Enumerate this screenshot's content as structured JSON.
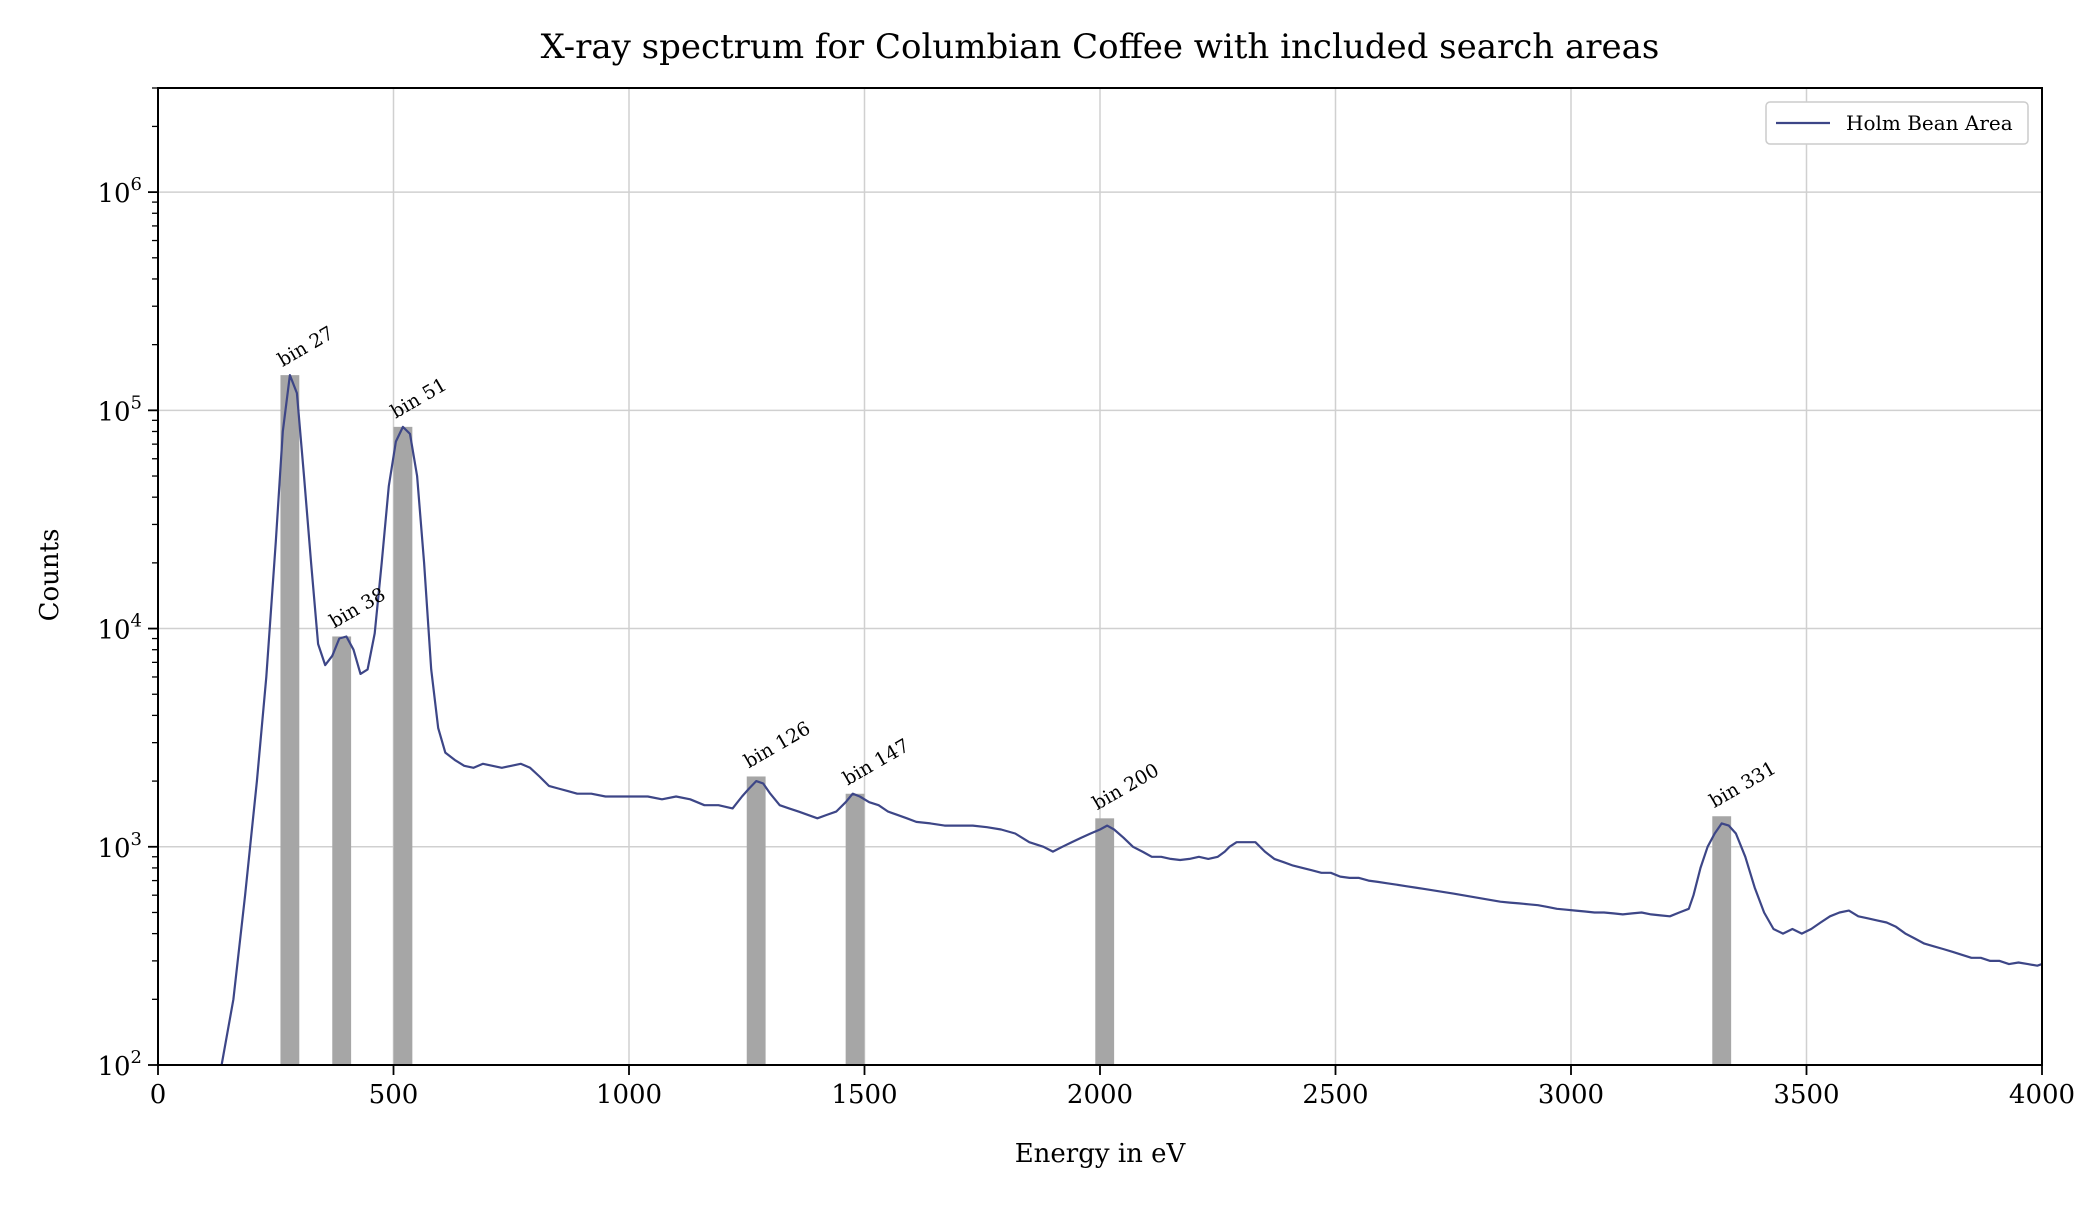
{
  "chart_data": {
    "type": "line",
    "title": "X-ray spectrum for Columbian Coffee with included search areas",
    "xlabel": "Energy in eV",
    "ylabel": "Counts",
    "xlim": [
      0,
      4000
    ],
    "ylim": [
      100,
      3000000
    ],
    "yscale": "log",
    "grid": true,
    "legend_position": "top-right",
    "x_ticks": [
      0,
      500,
      1000,
      1500,
      2000,
      2500,
      3000,
      3500,
      4000
    ],
    "x_tick_labels": [
      "0",
      "500",
      "1000",
      "1500",
      "2000",
      "2500",
      "3000",
      "3500",
      "4000"
    ],
    "y_ticks": [
      {
        "value": 100,
        "base": "10",
        "exp": "2"
      },
      {
        "value": 1000,
        "base": "10",
        "exp": "3"
      },
      {
        "value": 10000,
        "base": "10",
        "exp": "4"
      },
      {
        "value": 100000,
        "base": "10",
        "exp": "5"
      },
      {
        "value": 1000000,
        "base": "10",
        "exp": "6"
      }
    ],
    "series": [
      {
        "name": "Holm Bean Area",
        "color": "#3d4687",
        "points": [
          [
            135,
            100
          ],
          [
            160,
            200
          ],
          [
            185,
            600
          ],
          [
            210,
            2000
          ],
          [
            230,
            6000
          ],
          [
            250,
            25000
          ],
          [
            265,
            80000
          ],
          [
            280,
            145000
          ],
          [
            295,
            120000
          ],
          [
            310,
            50000
          ],
          [
            325,
            20000
          ],
          [
            340,
            8500
          ],
          [
            355,
            6800
          ],
          [
            370,
            7500
          ],
          [
            385,
            9000
          ],
          [
            400,
            9200
          ],
          [
            415,
            8000
          ],
          [
            430,
            6200
          ],
          [
            445,
            6500
          ],
          [
            460,
            9500
          ],
          [
            475,
            20000
          ],
          [
            490,
            45000
          ],
          [
            505,
            72000
          ],
          [
            520,
            84000
          ],
          [
            535,
            78000
          ],
          [
            550,
            50000
          ],
          [
            565,
            20000
          ],
          [
            580,
            6500
          ],
          [
            595,
            3500
          ],
          [
            610,
            2700
          ],
          [
            630,
            2500
          ],
          [
            650,
            2350
          ],
          [
            670,
            2300
          ],
          [
            690,
            2400
          ],
          [
            710,
            2350
          ],
          [
            730,
            2300
          ],
          [
            750,
            2350
          ],
          [
            770,
            2400
          ],
          [
            790,
            2300
          ],
          [
            810,
            2100
          ],
          [
            830,
            1900
          ],
          [
            850,
            1850
          ],
          [
            870,
            1800
          ],
          [
            890,
            1750
          ],
          [
            920,
            1750
          ],
          [
            950,
            1700
          ],
          [
            980,
            1700
          ],
          [
            1010,
            1700
          ],
          [
            1040,
            1700
          ],
          [
            1070,
            1650
          ],
          [
            1100,
            1700
          ],
          [
            1130,
            1650
          ],
          [
            1160,
            1550
          ],
          [
            1190,
            1550
          ],
          [
            1220,
            1500
          ],
          [
            1240,
            1700
          ],
          [
            1255,
            1850
          ],
          [
            1270,
            2000
          ],
          [
            1285,
            1950
          ],
          [
            1300,
            1750
          ],
          [
            1320,
            1550
          ],
          [
            1340,
            1500
          ],
          [
            1360,
            1450
          ],
          [
            1380,
            1400
          ],
          [
            1400,
            1350
          ],
          [
            1420,
            1400
          ],
          [
            1440,
            1450
          ],
          [
            1460,
            1600
          ],
          [
            1475,
            1750
          ],
          [
            1490,
            1700
          ],
          [
            1510,
            1600
          ],
          [
            1530,
            1550
          ],
          [
            1550,
            1450
          ],
          [
            1570,
            1400
          ],
          [
            1590,
            1350
          ],
          [
            1610,
            1300
          ],
          [
            1640,
            1280
          ],
          [
            1670,
            1250
          ],
          [
            1700,
            1250
          ],
          [
            1730,
            1250
          ],
          [
            1760,
            1230
          ],
          [
            1790,
            1200
          ],
          [
            1820,
            1150
          ],
          [
            1850,
            1050
          ],
          [
            1880,
            1000
          ],
          [
            1900,
            950
          ],
          [
            1920,
            1000
          ],
          [
            1940,
            1050
          ],
          [
            1960,
            1100
          ],
          [
            1980,
            1150
          ],
          [
            2000,
            1200
          ],
          [
            2015,
            1250
          ],
          [
            2030,
            1200
          ],
          [
            2050,
            1100
          ],
          [
            2070,
            1000
          ],
          [
            2090,
            950
          ],
          [
            2110,
            900
          ],
          [
            2130,
            900
          ],
          [
            2150,
            880
          ],
          [
            2170,
            870
          ],
          [
            2190,
            880
          ],
          [
            2210,
            900
          ],
          [
            2230,
            880
          ],
          [
            2250,
            900
          ],
          [
            2265,
            950
          ],
          [
            2275,
            1000
          ],
          [
            2290,
            1050
          ],
          [
            2310,
            1050
          ],
          [
            2330,
            1050
          ],
          [
            2350,
            950
          ],
          [
            2370,
            880
          ],
          [
            2390,
            850
          ],
          [
            2410,
            820
          ],
          [
            2430,
            800
          ],
          [
            2450,
            780
          ],
          [
            2470,
            760
          ],
          [
            2490,
            760
          ],
          [
            2510,
            730
          ],
          [
            2530,
            720
          ],
          [
            2550,
            720
          ],
          [
            2570,
            700
          ],
          [
            2590,
            690
          ],
          [
            2610,
            680
          ],
          [
            2630,
            670
          ],
          [
            2650,
            660
          ],
          [
            2670,
            650
          ],
          [
            2690,
            640
          ],
          [
            2710,
            630
          ],
          [
            2730,
            620
          ],
          [
            2750,
            610
          ],
          [
            2770,
            600
          ],
          [
            2790,
            590
          ],
          [
            2810,
            580
          ],
          [
            2830,
            570
          ],
          [
            2850,
            560
          ],
          [
            2870,
            555
          ],
          [
            2890,
            550
          ],
          [
            2910,
            545
          ],
          [
            2930,
            540
          ],
          [
            2950,
            530
          ],
          [
            2970,
            520
          ],
          [
            2990,
            515
          ],
          [
            3010,
            510
          ],
          [
            3030,
            505
          ],
          [
            3050,
            500
          ],
          [
            3070,
            500
          ],
          [
            3090,
            495
          ],
          [
            3110,
            490
          ],
          [
            3130,
            495
          ],
          [
            3150,
            500
          ],
          [
            3170,
            490
          ],
          [
            3190,
            485
          ],
          [
            3210,
            480
          ],
          [
            3230,
            500
          ],
          [
            3250,
            520
          ],
          [
            3260,
            600
          ],
          [
            3275,
            800
          ],
          [
            3290,
            1000
          ],
          [
            3305,
            1150
          ],
          [
            3320,
            1280
          ],
          [
            3335,
            1250
          ],
          [
            3350,
            1150
          ],
          [
            3370,
            900
          ],
          [
            3390,
            650
          ],
          [
            3410,
            500
          ],
          [
            3430,
            420
          ],
          [
            3450,
            400
          ],
          [
            3470,
            420
          ],
          [
            3490,
            400
          ],
          [
            3510,
            420
          ],
          [
            3530,
            450
          ],
          [
            3550,
            480
          ],
          [
            3570,
            500
          ],
          [
            3590,
            510
          ],
          [
            3610,
            480
          ],
          [
            3630,
            470
          ],
          [
            3650,
            460
          ],
          [
            3670,
            450
          ],
          [
            3690,
            430
          ],
          [
            3710,
            400
          ],
          [
            3730,
            380
          ],
          [
            3750,
            360
          ],
          [
            3770,
            350
          ],
          [
            3790,
            340
          ],
          [
            3810,
            330
          ],
          [
            3830,
            320
          ],
          [
            3850,
            310
          ],
          [
            3870,
            310
          ],
          [
            3890,
            300
          ],
          [
            3910,
            300
          ],
          [
            3930,
            290
          ],
          [
            3950,
            295
          ],
          [
            3970,
            290
          ],
          [
            3990,
            285
          ],
          [
            4000,
            290
          ]
        ]
      }
    ],
    "search_areas": [
      {
        "label": "bin 27",
        "x_start": 260,
        "x_end": 300,
        "height": 145000
      },
      {
        "label": "bin 38",
        "x_start": 370,
        "x_end": 410,
        "height": 9200
      },
      {
        "label": "bin 51",
        "x_start": 500,
        "x_end": 540,
        "height": 84000
      },
      {
        "label": "bin 126",
        "x_start": 1250,
        "x_end": 1290,
        "height": 2100
      },
      {
        "label": "bin 147",
        "x_start": 1460,
        "x_end": 1500,
        "height": 1750
      },
      {
        "label": "bin 200",
        "x_start": 1990,
        "x_end": 2030,
        "height": 1350
      },
      {
        "label": "bin 331",
        "x_start": 3300,
        "x_end": 3340,
        "height": 1380
      }
    ],
    "bar_color": "#a6a6a6"
  }
}
